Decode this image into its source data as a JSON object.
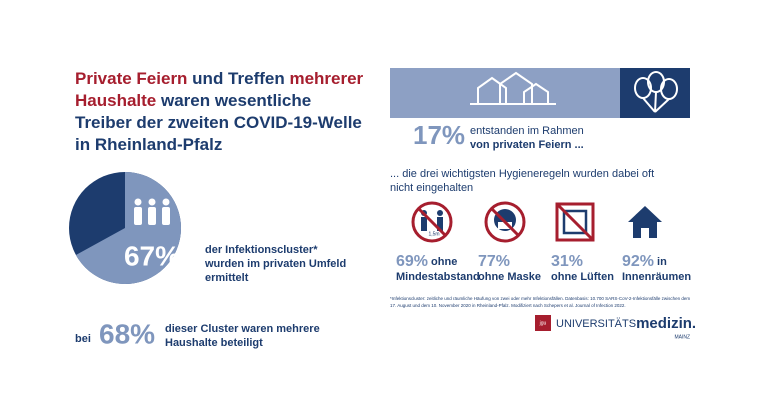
{
  "title": [
    [
      {
        "text": "Private Feiern",
        "color": "#a61e2e"
      },
      {
        "text": " und Treffen ",
        "color": "#1d3c6e"
      },
      {
        "text": "mehrerer",
        "color": "#a61e2e"
      }
    ],
    [
      {
        "text": "Haushalte",
        "color": "#a61e2e"
      },
      {
        "text": " waren wesentliche",
        "color": "#1d3c6e"
      }
    ],
    [
      {
        "text": "Treiber der zweiten COVID-19-Welle",
        "color": "#1d3c6e"
      }
    ],
    [
      {
        "text": "in Rheinland-Pfalz",
        "color": "#1d3c6e"
      }
    ]
  ],
  "infection_pie": {
    "values": [
      67
    ],
    "value_labels": [
      "67%"
    ],
    "color": "#7f96bd",
    "rest_color": "#1d3c6e",
    "text": [
      "der Infektionscluster*",
      "wurden im privaten Umfeld",
      "ermittelt"
    ]
  },
  "households": {
    "prefix": "bei",
    "value_label": "68%",
    "text": [
      "dieser Cluster waren mehrere",
      "Haushalte beteiligt"
    ]
  },
  "private_parties": {
    "value_label": "17%",
    "text": [
      "entstanden im Rahmen",
      "von privaten Feiern ..."
    ]
  },
  "hygiene_intro": [
    "... die drei wichtigsten Hygieneregeln wurden dabei oft",
    "nicht eingehalten"
  ],
  "hygiene_rules": [
    {
      "value_label": "69%",
      "text": [
        "ohne",
        "Mindestabstand"
      ]
    },
    {
      "value_label": "77%",
      "text": [
        "",
        "ohne Maske"
      ]
    },
    {
      "value_label": "31%",
      "text": [
        "",
        "ohne Lüften"
      ]
    },
    {
      "value_label": "92%",
      "text": [
        "in",
        "Innenräumen"
      ]
    }
  ],
  "icon_distance_label": "1,5m",
  "footnote": [
    "*Infektionscluster: zeitliche und räumliche Häufung von zwei oder mehr Infektionsfällen. Datenbasis: 10.700 SARS-CoV-2-Infektionsfälle zwischen dem",
    "17. August und dem 10. November 2020 in Rheinland-Pfalz. Modifiziert nach Schepers et al. Journal of Infection 2022."
  ],
  "logo": {
    "mark": "jgu",
    "prefix": "UNIVERSITÄTS",
    "main": "medizin.",
    "city": "MAINZ"
  }
}
